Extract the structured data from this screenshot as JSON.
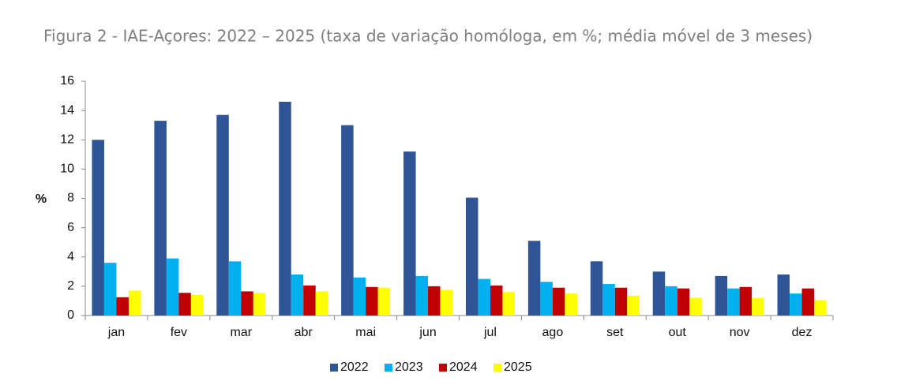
{
  "chart_data": {
    "type": "bar",
    "title": "Figura 2 - IAE-Açores: 2022 – 2025 (taxa de variação homóloga, em %; média móvel de 3 meses)",
    "y_label": "%",
    "categories": [
      "jan",
      "fev",
      "mar",
      "abr",
      "mai",
      "jun",
      "jul",
      "ago",
      "set",
      "out",
      "nov",
      "dez"
    ],
    "series": [
      {
        "name": "2022",
        "color": "#2f5597",
        "values": [
          12.0,
          13.3,
          13.7,
          14.6,
          13.0,
          11.2,
          8.05,
          5.1,
          3.7,
          3.0,
          2.7,
          2.8
        ]
      },
      {
        "name": "2023",
        "color": "#00b0f0",
        "values": [
          3.6,
          3.9,
          3.7,
          2.8,
          2.6,
          2.7,
          2.5,
          2.3,
          2.15,
          2.0,
          1.85,
          1.5
        ]
      },
      {
        "name": "2024",
        "color": "#c00000",
        "values": [
          1.25,
          1.55,
          1.65,
          2.05,
          1.95,
          2.0,
          2.05,
          1.9,
          1.9,
          1.85,
          1.95,
          1.85
        ]
      },
      {
        "name": "2025",
        "color": "#ffff00",
        "values": [
          1.7,
          1.4,
          1.55,
          1.65,
          1.9,
          1.75,
          1.6,
          1.5,
          1.35,
          1.2,
          1.2,
          1.05
        ]
      }
    ],
    "ylim": [
      0,
      16
    ],
    "yticks": [
      0,
      2,
      4,
      6,
      8,
      10,
      12,
      14,
      16
    ],
    "grid": false,
    "legend": "bottom"
  }
}
